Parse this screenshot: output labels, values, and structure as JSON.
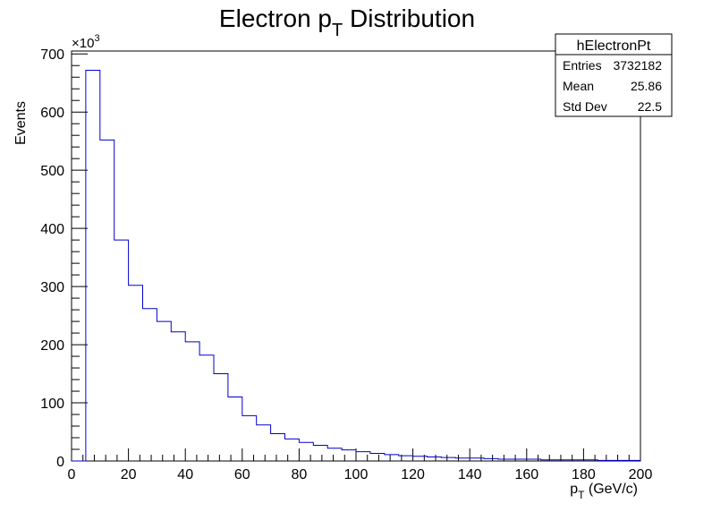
{
  "chart_data": {
    "type": "histogram",
    "title_main": "Electron p",
    "title_sub": "T",
    "title_rest": " Distribution",
    "ylabel": "Events",
    "xlabel_main": "p",
    "xlabel_sub": "T",
    "xlabel_rest": " (GeV/c)",
    "y_multiplier_label": "×10",
    "y_multiplier_exp": "3",
    "xlim": [
      0,
      200
    ],
    "ylim": [
      0,
      705
    ],
    "bin_width": 5,
    "x_ticks": [
      "0",
      "20",
      "40",
      "60",
      "80",
      "100",
      "120",
      "140",
      "160",
      "180",
      "200"
    ],
    "y_ticks": [
      "0",
      "100",
      "200",
      "300",
      "400",
      "500",
      "600",
      "700"
    ],
    "bins_low_edges": [
      0,
      5,
      10,
      15,
      20,
      25,
      30,
      35,
      40,
      45,
      50,
      55,
      60,
      65,
      70,
      75,
      80,
      85,
      90,
      95,
      100,
      105,
      110,
      115,
      120,
      125,
      130,
      135,
      140,
      145,
      150,
      155,
      160,
      165,
      170,
      175,
      180,
      185,
      190,
      195
    ],
    "values": [
      0,
      672,
      552,
      380,
      302,
      262,
      240,
      222,
      205,
      182,
      150,
      110,
      78,
      62,
      47,
      38,
      32,
      27,
      22,
      19,
      16,
      13,
      11,
      9,
      8,
      7,
      6,
      5,
      5,
      4,
      3,
      3,
      3,
      2,
      2,
      2,
      2,
      1,
      1,
      1
    ],
    "line_color": "#0000cc",
    "stats_box": {
      "title": "hElectronPt",
      "rows": [
        {
          "label": "Entries",
          "value": "3732182"
        },
        {
          "label": "Mean",
          "value": "25.86"
        },
        {
          "label": "Std Dev",
          "value": "22.5"
        }
      ]
    }
  }
}
